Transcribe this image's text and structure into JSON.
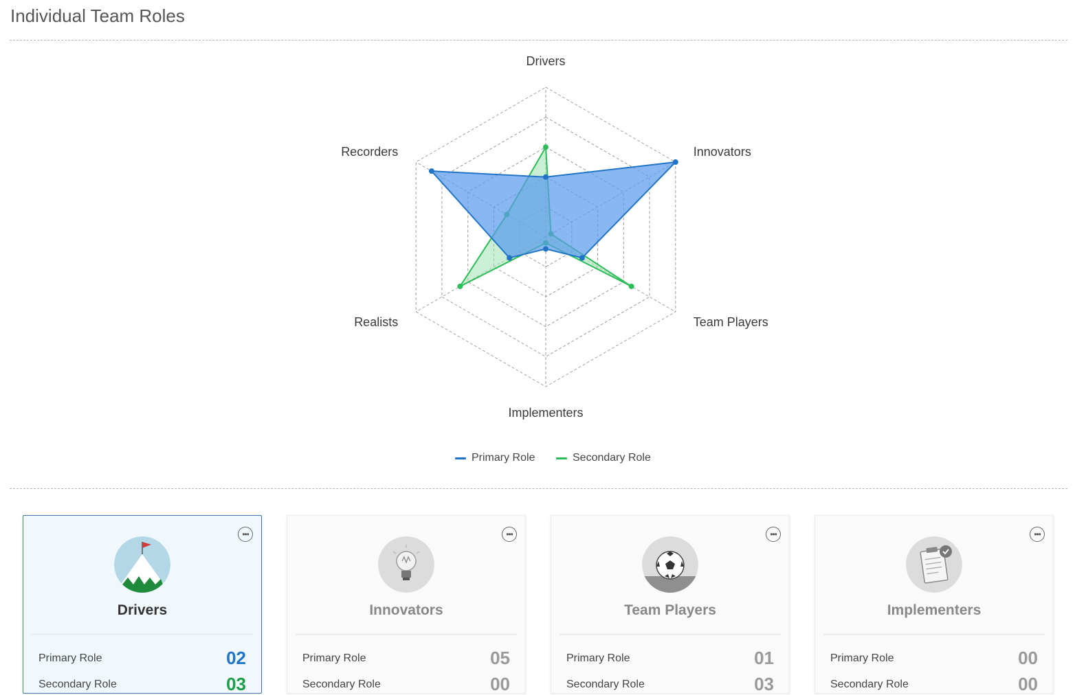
{
  "page": {
    "title": "Individual Team Roles"
  },
  "chart_data": {
    "type": "radar",
    "axes": [
      "Drivers",
      "Innovators",
      "Team Players",
      "Implementers",
      "Realists",
      "Recorders"
    ],
    "max": 5,
    "rings": 5,
    "grid": true,
    "legend_position": "bottom-center",
    "series": [
      {
        "name": "Primary Role",
        "color": "#1f74c6",
        "fill": "#5a9bec",
        "values": [
          2,
          5,
          1.4,
          0.4,
          1.4,
          4.4
        ]
      },
      {
        "name": "Secondary Role",
        "color": "#2bbd58",
        "fill": "#9fe2b0",
        "values": [
          3,
          0.2,
          3.3,
          0.2,
          3.3,
          1.5
        ]
      }
    ]
  },
  "legend": [
    {
      "label": "Primary Role",
      "color": "#1f74c6"
    },
    {
      "label": "Secondary Role",
      "color": "#2bbd58"
    }
  ],
  "cards": [
    {
      "title": "Drivers",
      "icon": "mountain-flag-icon",
      "primary_label": "Primary Role",
      "primary_value": "02",
      "secondary_label": "Secondary Role",
      "secondary_value": "03",
      "menu_icon": "more-options-icon"
    },
    {
      "title": "Innovators",
      "icon": "lightbulb-icon",
      "primary_label": "Primary Role",
      "primary_value": "05",
      "secondary_label": "Secondary Role",
      "secondary_value": "00",
      "menu_icon": "more-options-icon"
    },
    {
      "title": "Team Players",
      "icon": "soccer-ball-icon",
      "primary_label": "Primary Role",
      "primary_value": "01",
      "secondary_label": "Secondary Role",
      "secondary_value": "03",
      "menu_icon": "more-options-icon"
    },
    {
      "title": "Implementers",
      "icon": "clipboard-icon",
      "primary_label": "Primary Role",
      "primary_value": "00",
      "secondary_label": "Secondary Role",
      "secondary_value": "00",
      "menu_icon": "more-options-icon"
    }
  ]
}
